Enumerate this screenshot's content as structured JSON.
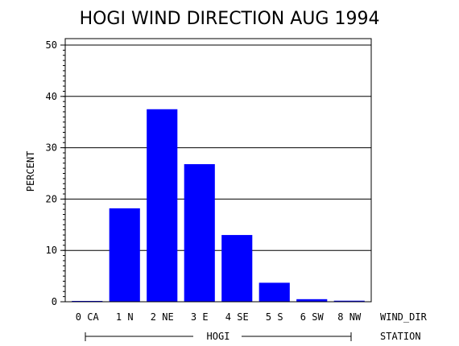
{
  "chart_data": {
    "type": "bar",
    "title": "HOGI WIND DIRECTION AUG 1994",
    "ylabel": "PERCENT",
    "xlabel": "WIND_DIR",
    "group_axis_label": "STATION",
    "group_label": "HOGI",
    "categories": [
      "0 CA",
      "1 N",
      "2 NE",
      "3 E",
      "4 SE",
      "5 S",
      "6 SW",
      "8 NW"
    ],
    "values": [
      0.1,
      18.2,
      37.5,
      26.8,
      13.0,
      3.7,
      0.5,
      0.2
    ],
    "ylim": [
      0,
      50
    ],
    "yticks": [
      "0",
      "10",
      "20",
      "30",
      "40",
      "50"
    ],
    "grid": true,
    "bar_color": "#0000ff"
  }
}
